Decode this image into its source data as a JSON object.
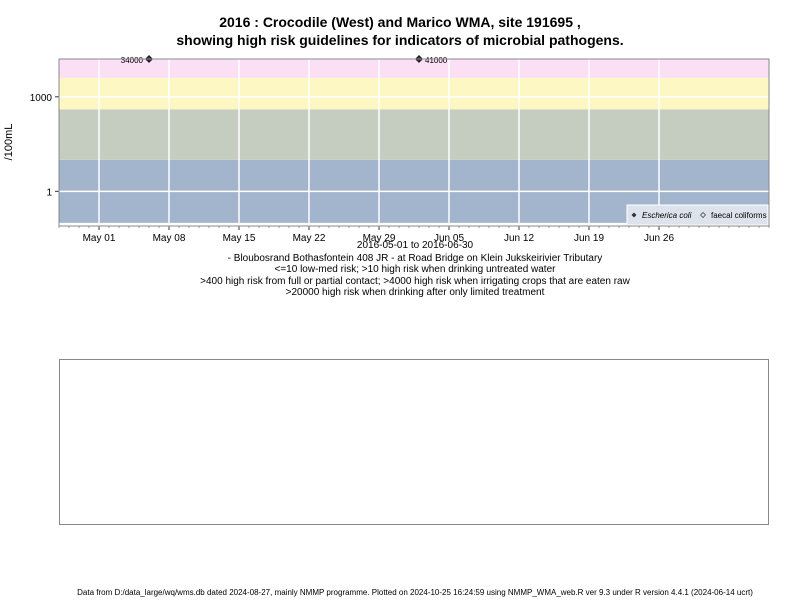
{
  "title_line1": "2016 : Crocodile (West) and Marico WMA, site 191695 ,",
  "title_line2": "showing high risk guidelines for indicators of microbial pathogens.",
  "caption": {
    "date_range": "2016-05-01 to 2016-06-30",
    "site": "- Bloubosrand Bothasfontein 408 JR - at Road Bridge on Klein Jukskeirivier Tributary",
    "risk1": "<=10 low-med risk; >10 high risk when drinking untreated water",
    "risk2": ">400 high risk from full or partial contact; >4000 high risk when irrigating crops that are eaten raw",
    "risk3": ">20000 high risk when drinking after only limited treatment"
  },
  "footer": "Data from D:/data_large/wq/wms.db dated 2024-08-27, mainly NMMP programme. Plotted on 2024-10-25 16:24:59 using NMMP_WMA_web.R ver 9.3 under R version 4.4.1 (2024-06-14 ucrt)",
  "chart_data": {
    "type": "scatter",
    "ylabel": "/100mL",
    "y_scale": "log10",
    "x_range": [
      "2016-04-27",
      "2016-07-07"
    ],
    "y_range_log10": [
      -1.1,
      4.2
    ],
    "x_ticks": [
      {
        "date": "2016-05-01",
        "label": "May 01"
      },
      {
        "date": "2016-05-08",
        "label": "May 08"
      },
      {
        "date": "2016-05-15",
        "label": "May 15"
      },
      {
        "date": "2016-05-22",
        "label": "May 22"
      },
      {
        "date": "2016-05-29",
        "label": "May 29"
      },
      {
        "date": "2016-06-05",
        "label": "Jun 05"
      },
      {
        "date": "2016-06-12",
        "label": "Jun 12"
      },
      {
        "date": "2016-06-19",
        "label": "Jun 19"
      },
      {
        "date": "2016-06-26",
        "label": "Jun 26"
      }
    ],
    "y_ticks": [
      {
        "value": 1,
        "label": "1"
      },
      {
        "value": 1000,
        "label": "1000"
      }
    ],
    "bands": [
      {
        "from": 0.1,
        "to": 10,
        "color": "#a3b4cd"
      },
      {
        "from": 10,
        "to": 400,
        "color": "#c4cdc0"
      },
      {
        "from": 400,
        "to": 4000,
        "color": "#fdf7c3"
      },
      {
        "from": 4000,
        "to": 20000,
        "color": "#fbdff5"
      },
      {
        "from": 20000,
        "to": 16000,
        "color": "#fbbdc8"
      }
    ],
    "series": [
      {
        "name": "Escherica coli",
        "marker": "filled-diamond",
        "points": [
          {
            "date": "2016-05-06",
            "value": 34000,
            "label": "34000"
          },
          {
            "date": "2016-06-02",
            "value": 41000,
            "label": "41000"
          }
        ]
      },
      {
        "name": "faecal coliforms",
        "marker": "open-diamond",
        "points": []
      }
    ],
    "legend_position": "bottom-right"
  }
}
